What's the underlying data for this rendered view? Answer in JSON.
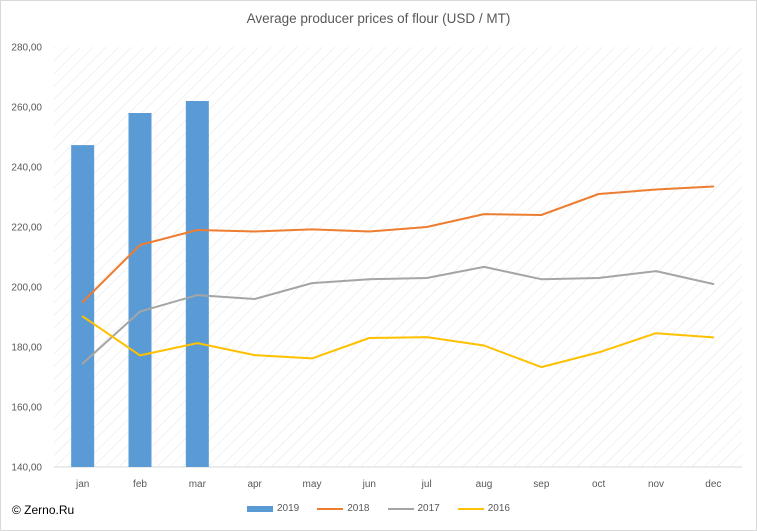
{
  "title": "Average producer prices of flour (USD / MT)",
  "copyright": "© Zerno.Ru",
  "chart_data": {
    "type": "bar+line",
    "title": "Average producer prices of flour (USD / MT)",
    "categories": [
      "jan",
      "feb",
      "mar",
      "apr",
      "may",
      "jun",
      "jul",
      "aug",
      "sep",
      "oct",
      "nov",
      "dec"
    ],
    "yticks": [
      "140,00",
      "160,00",
      "180,00",
      "200,00",
      "220,00",
      "240,00",
      "260,00",
      "280,00"
    ],
    "ylim": [
      140,
      280
    ],
    "grid": false,
    "background": "diagonal hatch",
    "legend_position": "bottom",
    "series": [
      {
        "name": "2019",
        "type": "bar",
        "color": "#5b9bd5",
        "values": [
          247.3,
          258.0,
          262.0,
          null,
          null,
          null,
          null,
          null,
          null,
          null,
          null,
          null
        ]
      },
      {
        "name": "2018",
        "type": "line",
        "color": "#ed7d31",
        "values": [
          195.0,
          214.0,
          219.0,
          218.5,
          219.2,
          218.5,
          220.0,
          224.3,
          224.0,
          231.0,
          232.5,
          233.5
        ]
      },
      {
        "name": "2017",
        "type": "line",
        "color": "#a5a5a5",
        "values": [
          174.5,
          191.8,
          197.3,
          196.0,
          201.3,
          202.6,
          203.0,
          206.7,
          202.6,
          203.0,
          205.3,
          201.0
        ]
      },
      {
        "name": "2016",
        "type": "line",
        "color": "#ffc000",
        "values": [
          190.2,
          177.2,
          181.3,
          177.3,
          176.2,
          183.0,
          183.3,
          180.5,
          173.3,
          178.2,
          184.6,
          183.2
        ]
      }
    ]
  }
}
